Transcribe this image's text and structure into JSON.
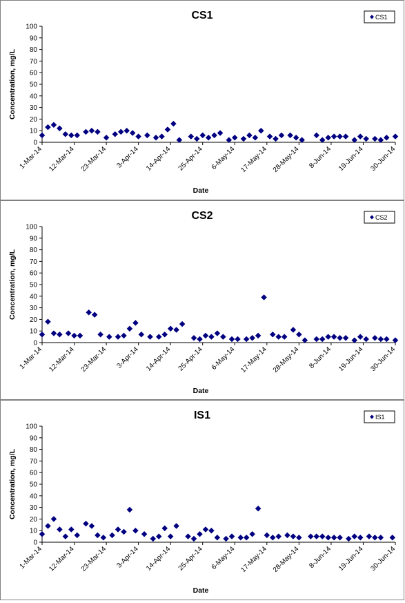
{
  "chart_data": [
    {
      "type": "scatter",
      "title": "CS1",
      "xlabel": "Date",
      "ylabel": "Concentration, mg/L",
      "ylim": [
        0,
        100
      ],
      "yticks": [
        0,
        10,
        20,
        30,
        40,
        50,
        60,
        70,
        80,
        90,
        100
      ],
      "xlim": [
        "2014-03-01",
        "2014-06-30"
      ],
      "xticks": [
        "1-Mar-14",
        "12-Mar-14",
        "23-Mar-14",
        "3-Apr-14",
        "14-Apr-14",
        "25-Apr-14",
        "6-May-14",
        "17-May-14",
        "28-May-14",
        "8-Jun-14",
        "19-Jun-14",
        "30-Jun-14"
      ],
      "legend": "top-right",
      "grid": false,
      "marker_color": "#000080",
      "series": [
        {
          "name": "CS1",
          "points": [
            [
              "2014-03-01",
              6
            ],
            [
              "2014-03-03",
              13
            ],
            [
              "2014-03-05",
              15
            ],
            [
              "2014-03-07",
              12
            ],
            [
              "2014-03-09",
              7
            ],
            [
              "2014-03-11",
              6
            ],
            [
              "2014-03-13",
              6
            ],
            [
              "2014-03-16",
              9
            ],
            [
              "2014-03-18",
              10
            ],
            [
              "2014-03-20",
              9
            ],
            [
              "2014-03-23",
              4
            ],
            [
              "2014-03-26",
              7
            ],
            [
              "2014-03-28",
              9
            ],
            [
              "2014-03-30",
              10
            ],
            [
              "2014-04-01",
              8
            ],
            [
              "2014-04-03",
              5
            ],
            [
              "2014-04-06",
              6
            ],
            [
              "2014-04-09",
              4
            ],
            [
              "2014-04-11",
              5
            ],
            [
              "2014-04-13",
              11
            ],
            [
              "2014-04-15",
              16
            ],
            [
              "2014-04-17",
              2
            ],
            [
              "2014-04-21",
              5
            ],
            [
              "2014-04-23",
              3
            ],
            [
              "2014-04-25",
              6
            ],
            [
              "2014-04-27",
              4
            ],
            [
              "2014-04-29",
              6
            ],
            [
              "2014-05-01",
              8
            ],
            [
              "2014-05-04",
              2
            ],
            [
              "2014-05-06",
              4
            ],
            [
              "2014-05-09",
              3
            ],
            [
              "2014-05-11",
              6
            ],
            [
              "2014-05-13",
              4
            ],
            [
              "2014-05-15",
              10
            ],
            [
              "2014-05-18",
              5
            ],
            [
              "2014-05-20",
              3
            ],
            [
              "2014-05-22",
              6
            ],
            [
              "2014-05-25",
              6
            ],
            [
              "2014-05-27",
              4
            ],
            [
              "2014-05-29",
              2
            ],
            [
              "2014-06-03",
              6
            ],
            [
              "2014-06-05",
              2
            ],
            [
              "2014-06-07",
              4
            ],
            [
              "2014-06-09",
              5
            ],
            [
              "2014-06-11",
              5
            ],
            [
              "2014-06-13",
              5
            ],
            [
              "2014-06-16",
              2
            ],
            [
              "2014-06-18",
              5
            ],
            [
              "2014-06-20",
              3
            ],
            [
              "2014-06-23",
              3
            ],
            [
              "2014-06-25",
              2
            ],
            [
              "2014-06-27",
              4
            ],
            [
              "2014-06-30",
              5
            ]
          ]
        }
      ]
    },
    {
      "type": "scatter",
      "title": "CS2",
      "xlabel": "Date",
      "ylabel": "Concentration, mg/L",
      "ylim": [
        0,
        100
      ],
      "yticks": [
        0,
        10,
        20,
        30,
        40,
        50,
        60,
        70,
        80,
        90,
        100
      ],
      "xlim": [
        "2014-03-01",
        "2014-06-30"
      ],
      "xticks": [
        "1-Mar-14",
        "12-Mar-14",
        "23-Mar-14",
        "3-Apr-14",
        "14-Apr-14",
        "25-Apr-14",
        "6-May-14",
        "17-May-14",
        "28-May-14",
        "8-Jun-14",
        "19-Jun-14",
        "30-Jun-14"
      ],
      "legend": "top-right",
      "grid": false,
      "marker_color": "#000080",
      "series": [
        {
          "name": "CS2",
          "points": [
            [
              "2014-03-01",
              7
            ],
            [
              "2014-03-03",
              18
            ],
            [
              "2014-03-05",
              8
            ],
            [
              "2014-03-07",
              7
            ],
            [
              "2014-03-10",
              8
            ],
            [
              "2014-03-12",
              6
            ],
            [
              "2014-03-14",
              6
            ],
            [
              "2014-03-17",
              26
            ],
            [
              "2014-03-19",
              24
            ],
            [
              "2014-03-21",
              7
            ],
            [
              "2014-03-24",
              5
            ],
            [
              "2014-03-27",
              5
            ],
            [
              "2014-03-29",
              6
            ],
            [
              "2014-03-31",
              12
            ],
            [
              "2014-04-02",
              17
            ],
            [
              "2014-04-04",
              7
            ],
            [
              "2014-04-07",
              5
            ],
            [
              "2014-04-10",
              5
            ],
            [
              "2014-04-12",
              7
            ],
            [
              "2014-04-14",
              12
            ],
            [
              "2014-04-16",
              11
            ],
            [
              "2014-04-18",
              16
            ],
            [
              "2014-04-22",
              4
            ],
            [
              "2014-04-24",
              3
            ],
            [
              "2014-04-26",
              6
            ],
            [
              "2014-04-28",
              5
            ],
            [
              "2014-04-30",
              8
            ],
            [
              "2014-05-02",
              5
            ],
            [
              "2014-05-05",
              3
            ],
            [
              "2014-05-07",
              3
            ],
            [
              "2014-05-10",
              3
            ],
            [
              "2014-05-12",
              4
            ],
            [
              "2014-05-14",
              6
            ],
            [
              "2014-05-16",
              39
            ],
            [
              "2014-05-19",
              7
            ],
            [
              "2014-05-21",
              5
            ],
            [
              "2014-05-23",
              5
            ],
            [
              "2014-05-26",
              11
            ],
            [
              "2014-05-28",
              7
            ],
            [
              "2014-05-30",
              2
            ],
            [
              "2014-06-03",
              3
            ],
            [
              "2014-06-05",
              3
            ],
            [
              "2014-06-07",
              5
            ],
            [
              "2014-06-09",
              5
            ],
            [
              "2014-06-11",
              4
            ],
            [
              "2014-06-13",
              4
            ],
            [
              "2014-06-16",
              2
            ],
            [
              "2014-06-18",
              5
            ],
            [
              "2014-06-20",
              3
            ],
            [
              "2014-06-23",
              4
            ],
            [
              "2014-06-25",
              3
            ],
            [
              "2014-06-27",
              3
            ],
            [
              "2014-06-30",
              2
            ]
          ]
        }
      ]
    },
    {
      "type": "scatter",
      "title": "IS1",
      "xlabel": "Date",
      "ylabel": "Concentration, mg/L",
      "ylim": [
        0,
        100
      ],
      "yticks": [
        0,
        10,
        20,
        30,
        40,
        50,
        60,
        70,
        80,
        90,
        100
      ],
      "xlim": [
        "2014-03-01",
        "2014-06-30"
      ],
      "xticks": [
        "1-Mar-14",
        "12-Mar-14",
        "23-Mar-14",
        "3-Apr-14",
        "14-Apr-14",
        "25-Apr-14",
        "6-May-14",
        "17-May-14",
        "28-May-14",
        "8-Jun-14",
        "19-Jun-14",
        "30-Jun-14"
      ],
      "legend": "top-right",
      "grid": false,
      "marker_color": "#000080",
      "series": [
        {
          "name": "IS1",
          "points": [
            [
              "2014-03-01",
              7
            ],
            [
              "2014-03-03",
              14
            ],
            [
              "2014-03-05",
              20
            ],
            [
              "2014-03-07",
              11
            ],
            [
              "2014-03-09",
              5
            ],
            [
              "2014-03-11",
              11
            ],
            [
              "2014-03-13",
              6
            ],
            [
              "2014-03-16",
              16
            ],
            [
              "2014-03-18",
              14
            ],
            [
              "2014-03-20",
              6
            ],
            [
              "2014-03-22",
              4
            ],
            [
              "2014-03-25",
              6
            ],
            [
              "2014-03-27",
              11
            ],
            [
              "2014-03-29",
              9
            ],
            [
              "2014-03-31",
              28
            ],
            [
              "2014-04-02",
              10
            ],
            [
              "2014-04-05",
              7
            ],
            [
              "2014-04-08",
              3
            ],
            [
              "2014-04-10",
              5
            ],
            [
              "2014-04-12",
              12
            ],
            [
              "2014-04-14",
              5
            ],
            [
              "2014-04-16",
              14
            ],
            [
              "2014-04-20",
              5
            ],
            [
              "2014-04-22",
              3
            ],
            [
              "2014-04-24",
              7
            ],
            [
              "2014-04-26",
              11
            ],
            [
              "2014-04-28",
              10
            ],
            [
              "2014-04-30",
              4
            ],
            [
              "2014-05-03",
              3
            ],
            [
              "2014-05-05",
              5
            ],
            [
              "2014-05-08",
              4
            ],
            [
              "2014-05-10",
              4
            ],
            [
              "2014-05-12",
              7
            ],
            [
              "2014-05-14",
              29
            ],
            [
              "2014-05-17",
              6
            ],
            [
              "2014-05-19",
              4
            ],
            [
              "2014-05-21",
              5
            ],
            [
              "2014-05-24",
              6
            ],
            [
              "2014-05-26",
              5
            ],
            [
              "2014-05-28",
              4
            ],
            [
              "2014-06-01",
              5
            ],
            [
              "2014-06-03",
              5
            ],
            [
              "2014-06-05",
              5
            ],
            [
              "2014-06-07",
              4
            ],
            [
              "2014-06-09",
              4
            ],
            [
              "2014-06-11",
              4
            ],
            [
              "2014-06-14",
              3
            ],
            [
              "2014-06-16",
              5
            ],
            [
              "2014-06-18",
              4
            ],
            [
              "2014-06-21",
              5
            ],
            [
              "2014-06-23",
              4
            ],
            [
              "2014-06-25",
              4
            ],
            [
              "2014-06-29",
              4
            ]
          ]
        }
      ]
    }
  ]
}
